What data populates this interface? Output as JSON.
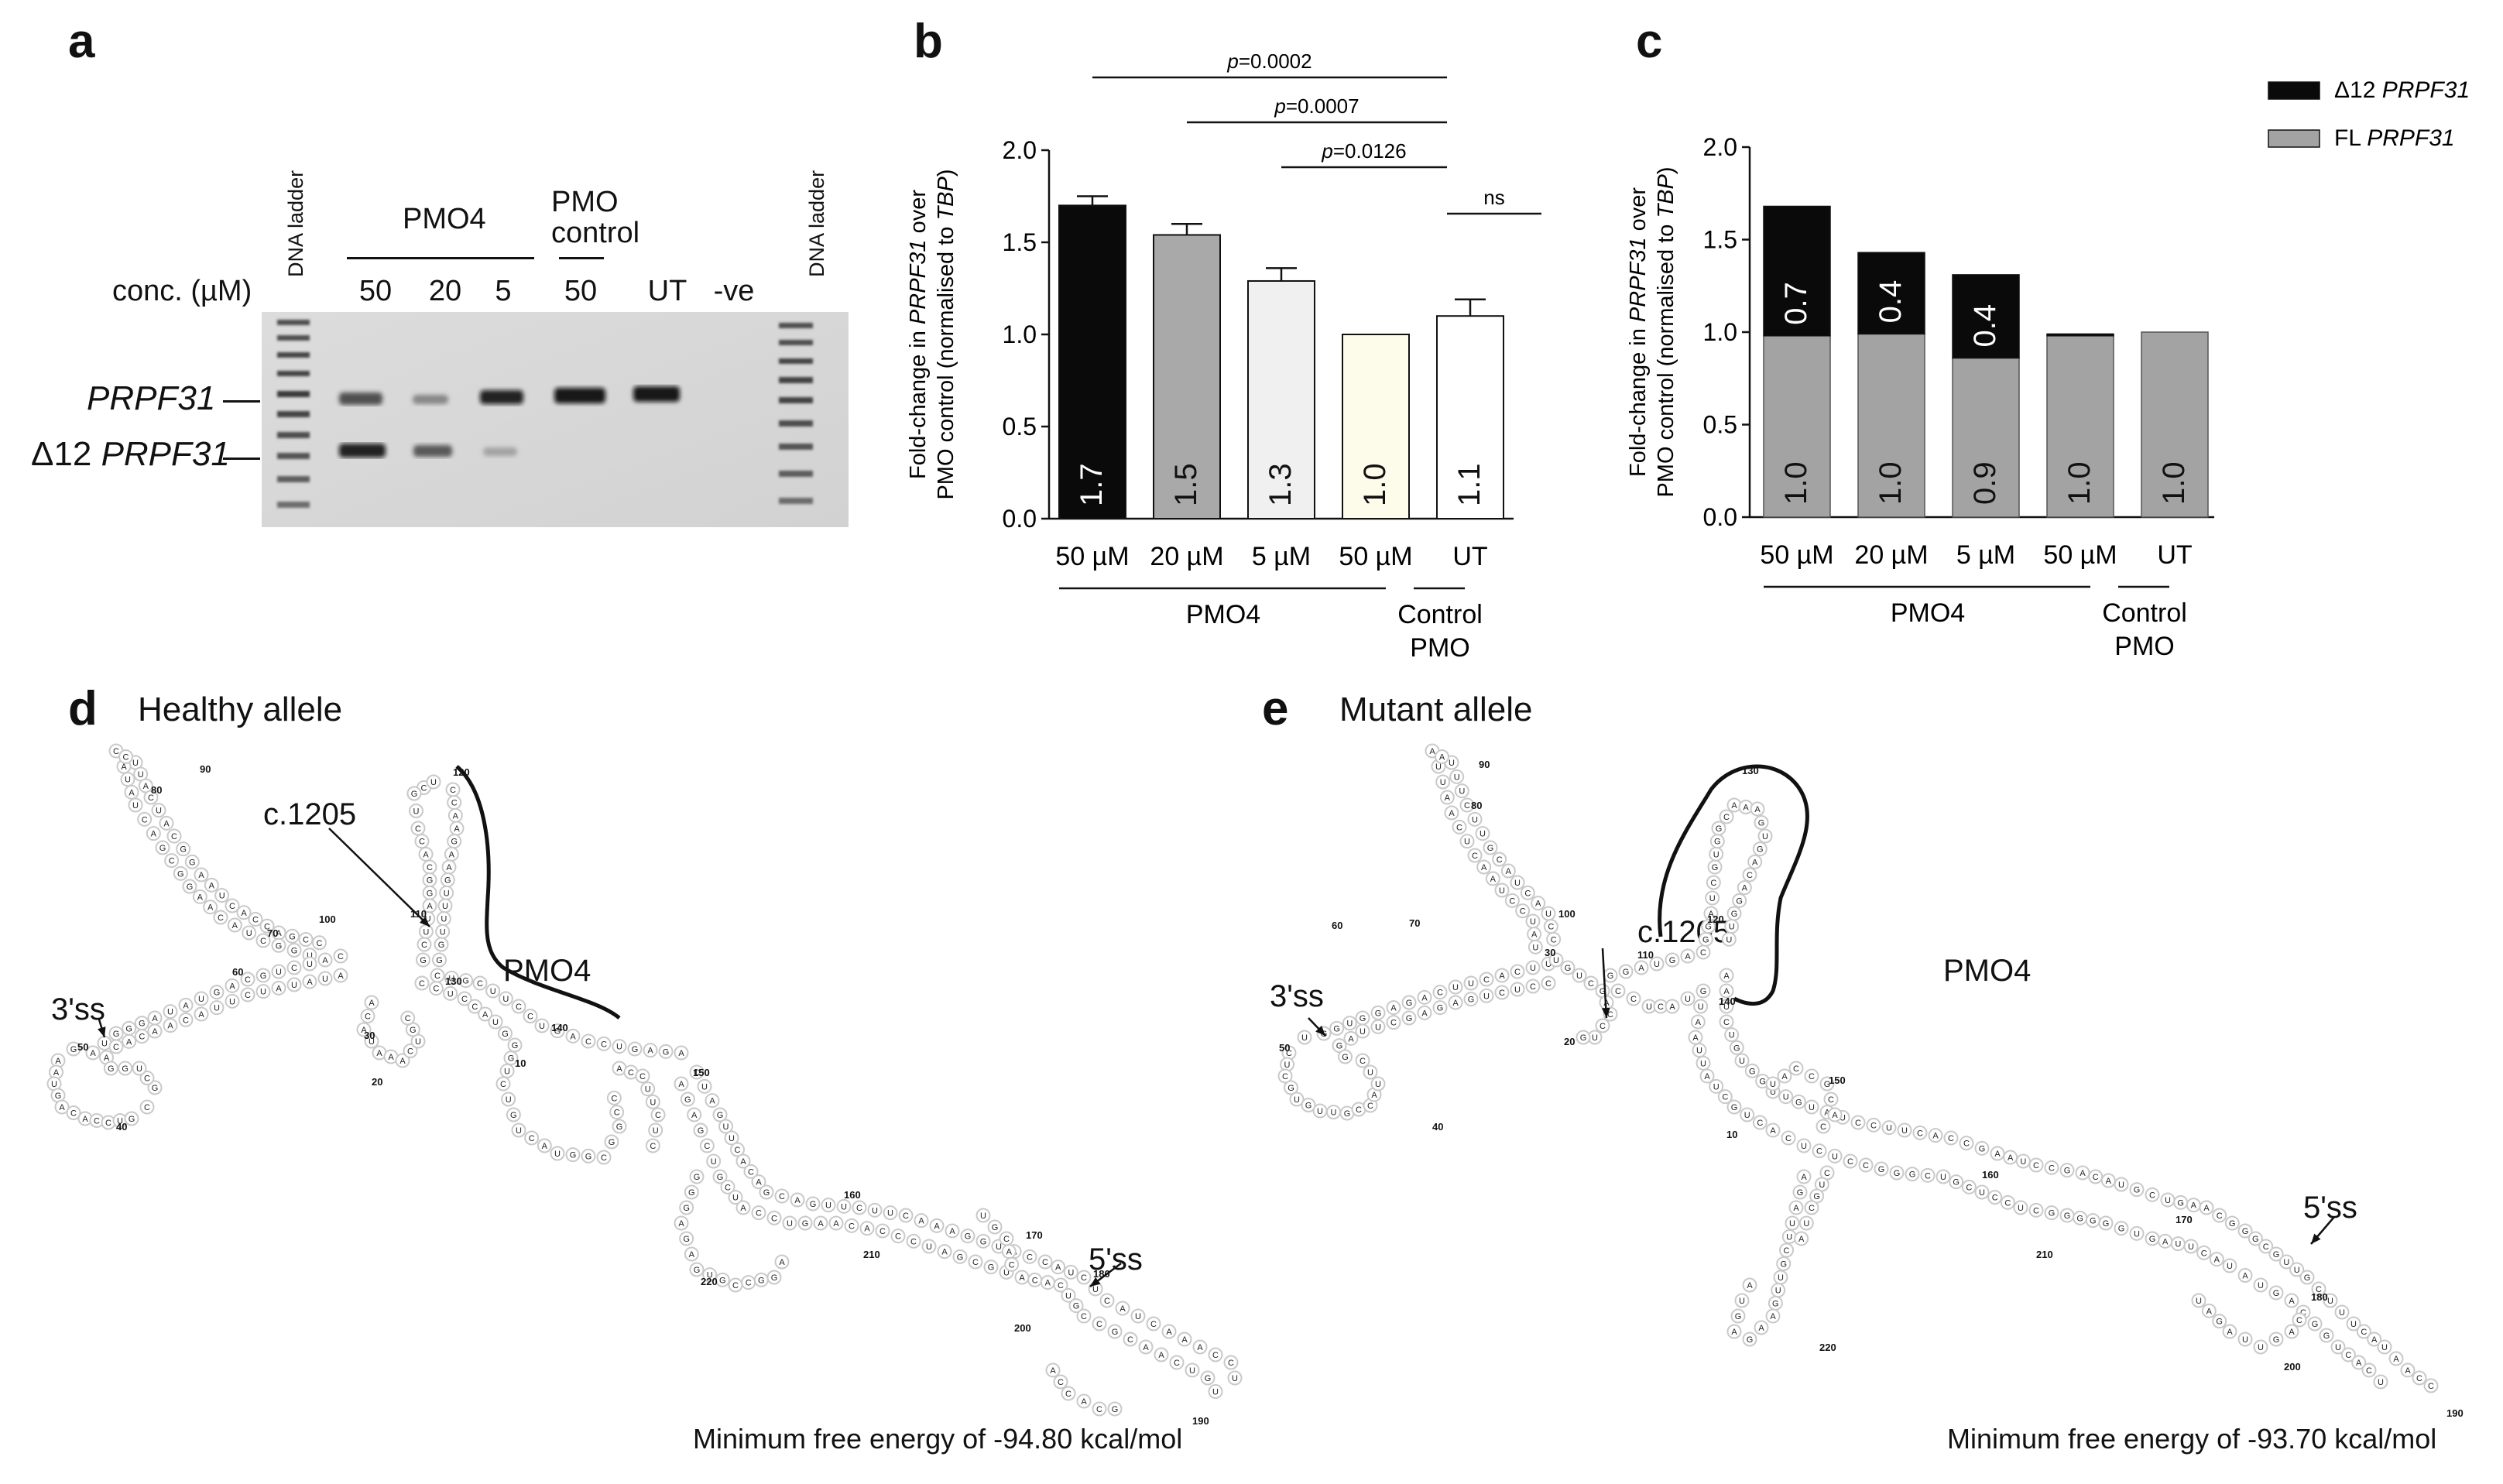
{
  "panel_a": {
    "label": "a",
    "ladder_label": "DNA ladder",
    "conc_label": "conc. (µM)",
    "group_pmo4": "PMO4",
    "group_control_line1": "PMO",
    "group_control_line2": "control",
    "lanes": [
      "50",
      "20",
      "5",
      "50",
      "UT",
      "-ve"
    ],
    "band_full": "PRPF31",
    "band_delta_prefix": "Δ12 ",
    "band_delta_gene": "PRPF31"
  },
  "chart_data": [
    {
      "panel": "b",
      "type": "bar",
      "ylabel_line1": "Fold-change  in PRPF31 over",
      "ylabel_line2": "PMO control (normalised to TBP)",
      "ylim": [
        0,
        2.0
      ],
      "yticks": [
        "0.0",
        "0.5",
        "1.0",
        "1.5",
        "2.0"
      ],
      "categories": [
        "50 µM",
        "20 µM",
        "5 µM",
        "50 µM",
        "UT"
      ],
      "values": [
        1.7,
        1.54,
        1.29,
        1.0,
        1.1
      ],
      "errors": [
        0.05,
        0.06,
        0.07,
        0,
        0.09
      ],
      "bar_labels": [
        "1.7",
        "1.5",
        "1.3",
        "1.0",
        "1.1"
      ],
      "bar_colors": [
        "#0a0a0a",
        "#a9a9a9",
        "#f0f0f0",
        "#fdfcea",
        "#ffffff"
      ],
      "group_labels": [
        "PMO4",
        "Control",
        "PMO"
      ],
      "significance": [
        "p=0.0002",
        "p=0.0007",
        "p=0.0126",
        "ns"
      ]
    },
    {
      "panel": "c",
      "type": "bar",
      "ylabel_line1": "Fold-change  in PRPF31 over",
      "ylabel_line2": "PMO control (normalised to TBP)",
      "ylim": [
        0,
        2.0
      ],
      "yticks": [
        "0.0",
        "0.5",
        "1.0",
        "1.5",
        "2.0"
      ],
      "categories": [
        "50 µM",
        "20 µM",
        "5 µM",
        "50 µM",
        "UT"
      ],
      "series": [
        {
          "name": "FL PRPF31",
          "color": "#a3a3a3",
          "values": [
            0.98,
            0.99,
            0.86,
            0.98,
            1.0
          ],
          "labels": [
            "1.0",
            "1.0",
            "0.9",
            "1.0",
            "1.0"
          ]
        },
        {
          "name": "Δ12 PRPF31",
          "color": "#0a0a0a",
          "values": [
            0.7,
            0.44,
            0.45,
            0.01,
            0
          ],
          "labels": [
            "0.7",
            "0.4",
            "0.4",
            "",
            ""
          ]
        }
      ],
      "legend": [
        "Δ12 PRPF31",
        "FL PRPF31"
      ],
      "group_labels": [
        "PMO4",
        "Control",
        "PMO"
      ]
    }
  ],
  "panel_d": {
    "label": "d",
    "title": "Healthy allele",
    "mutation": "c.1205",
    "pmo": "PMO4",
    "ss3": "3'ss",
    "ss5": "5'ss",
    "mfe": "Minimum free energy of -94.80 kcal/mol",
    "positions": [
      "10",
      "20",
      "30",
      "40",
      "50",
      "60",
      "70",
      "80",
      "90",
      "100",
      "110",
      "120",
      "130",
      "140",
      "150",
      "160",
      "170",
      "180",
      "190",
      "200",
      "210",
      "220"
    ]
  },
  "panel_e": {
    "label": "e",
    "title": "Mutant allele",
    "mutation": "c.1205",
    "pmo": "PMO4",
    "ss3": "3'ss",
    "ss5": "5'ss",
    "mfe": "Minimum free energy of -93.70 kcal/mol",
    "positions": [
      "10",
      "20",
      "30",
      "40",
      "50",
      "60",
      "70",
      "80",
      "90",
      "100",
      "110",
      "120",
      "130",
      "140",
      "150",
      "160",
      "170",
      "180",
      "190",
      "200",
      "210",
      "220"
    ]
  }
}
